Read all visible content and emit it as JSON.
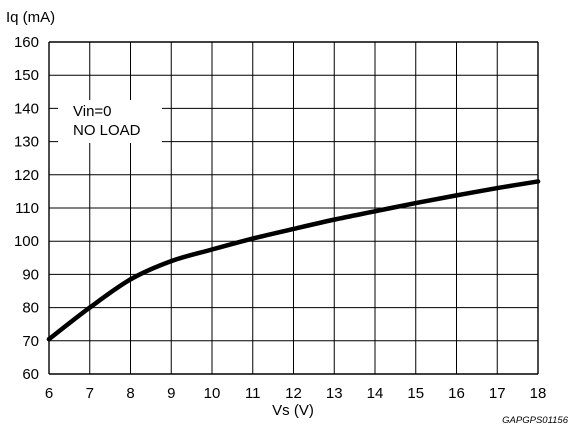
{
  "chart_data": {
    "type": "line",
    "title": "",
    "xlabel": "Vs (V)",
    "ylabel": "Iq (mA)",
    "xlim": [
      6,
      18
    ],
    "ylim": [
      60,
      160
    ],
    "xticks": [
      "6",
      "7",
      "8",
      "9",
      "10",
      "11",
      "12",
      "13",
      "14",
      "15",
      "16",
      "17",
      "18"
    ],
    "yticks": [
      "60",
      "70",
      "80",
      "90",
      "100",
      "110",
      "120",
      "130",
      "140",
      "150",
      "160"
    ],
    "grid": true,
    "legend": "none",
    "annotations": [
      "Vin=0",
      "NO LOAD"
    ],
    "figure_code": "GAPGPS01156",
    "series": [
      {
        "x": [
          6,
          7,
          8,
          9,
          10,
          11,
          12,
          13,
          14,
          15,
          16,
          17,
          18
        ],
        "values": [
          70.5,
          80,
          88.5,
          94,
          97.5,
          100.8,
          103.7,
          106.5,
          109,
          111.5,
          113.8,
          116,
          118
        ]
      }
    ],
    "colors": {
      "line": "#000000",
      "grid": "#000000",
      "background": "#ffffff"
    }
  }
}
